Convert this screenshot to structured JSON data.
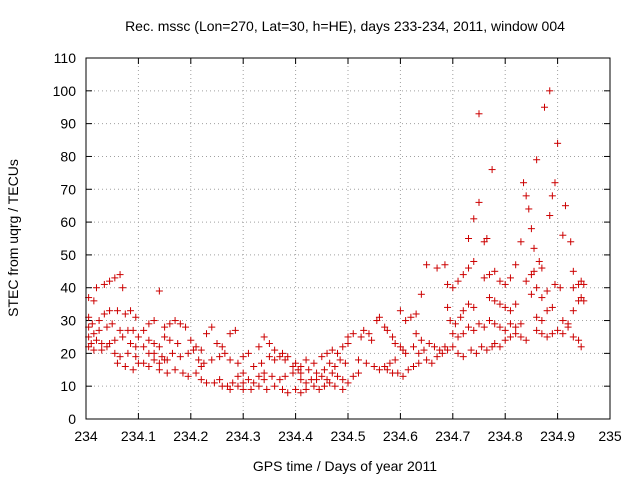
{
  "chart_data": {
    "type": "scatter",
    "title": "Rec. mssc (Lon=270, Lat=30, h=HE), days 233-234, 2011, window 004",
    "xlabel": "GPS time / Days of year 2011",
    "ylabel": "STEC from uqrg / TECUs",
    "xlim": [
      234,
      235
    ],
    "ylim": [
      0,
      110
    ],
    "grid": true,
    "marker": "plus",
    "color": "#cc0000",
    "x_ticks": [
      "234",
      "234.1",
      "234.2",
      "234.3",
      "234.4",
      "234.5",
      "234.6",
      "234.7",
      "234.8",
      "234.9",
      "235"
    ],
    "y_ticks": [
      "0",
      "10",
      "20",
      "30",
      "40",
      "50",
      "60",
      "70",
      "80",
      "90",
      "100",
      "110"
    ],
    "points": [
      [
        234.005,
        37
      ],
      [
        234.015,
        36
      ],
      [
        234.02,
        40
      ],
      [
        234.035,
        41
      ],
      [
        234.045,
        42
      ],
      [
        234.055,
        43
      ],
      [
        234.065,
        44
      ],
      [
        234.07,
        40
      ],
      [
        234.005,
        31
      ],
      [
        234.012,
        29
      ],
      [
        234.025,
        30
      ],
      [
        234.035,
        32
      ],
      [
        234.045,
        33
      ],
      [
        234.06,
        33
      ],
      [
        234.075,
        32
      ],
      [
        234.085,
        33
      ],
      [
        234.095,
        31
      ],
      [
        234.005,
        28
      ],
      [
        234.015,
        26
      ],
      [
        234.025,
        27
      ],
      [
        234.04,
        28
      ],
      [
        234.05,
        29
      ],
      [
        234.065,
        27
      ],
      [
        234.08,
        27
      ],
      [
        234.09,
        27
      ],
      [
        234.1,
        25
      ],
      [
        234.005,
        25
      ],
      [
        234.01,
        23
      ],
      [
        234.02,
        24
      ],
      [
        234.03,
        23
      ],
      [
        234.045,
        23
      ],
      [
        234.055,
        24
      ],
      [
        234.07,
        25
      ],
      [
        234.085,
        23
      ],
      [
        234.095,
        22
      ],
      [
        234.005,
        22
      ],
      [
        234.015,
        21
      ],
      [
        234.03,
        21
      ],
      [
        234.04,
        22
      ],
      [
        234.055,
        20
      ],
      [
        234.065,
        19
      ],
      [
        234.08,
        20
      ],
      [
        234.095,
        19
      ],
      [
        234.1,
        17
      ],
      [
        234.06,
        17
      ],
      [
        234.075,
        16
      ],
      [
        234.09,
        15
      ],
      [
        234.11,
        17
      ],
      [
        234.12,
        16
      ],
      [
        234.13,
        18
      ],
      [
        234.14,
        17
      ],
      [
        234.15,
        18
      ],
      [
        234.11,
        22
      ],
      [
        234.12,
        24
      ],
      [
        234.13,
        23
      ],
      [
        234.14,
        22
      ],
      [
        234.15,
        25
      ],
      [
        234.16,
        24
      ],
      [
        234.175,
        23
      ],
      [
        234.11,
        27
      ],
      [
        234.12,
        29
      ],
      [
        234.13,
        30
      ],
      [
        234.14,
        39
      ],
      [
        234.15,
        28
      ],
      [
        234.16,
        29
      ],
      [
        234.17,
        30
      ],
      [
        234.18,
        29
      ],
      [
        234.19,
        28
      ],
      [
        234.12,
        20
      ],
      [
        234.13,
        20
      ],
      [
        234.145,
        19
      ],
      [
        234.155,
        18
      ],
      [
        234.165,
        20
      ],
      [
        234.18,
        19
      ],
      [
        234.195,
        20
      ],
      [
        234.205,
        21
      ],
      [
        234.14,
        15
      ],
      [
        234.155,
        14
      ],
      [
        234.17,
        15
      ],
      [
        234.185,
        14
      ],
      [
        234.195,
        13
      ],
      [
        234.21,
        14
      ],
      [
        234.22,
        16
      ],
      [
        234.2,
        24
      ],
      [
        234.21,
        22
      ],
      [
        234.22,
        21
      ],
      [
        234.23,
        26
      ],
      [
        234.24,
        28
      ],
      [
        234.25,
        23
      ],
      [
        234.26,
        22
      ],
      [
        234.275,
        26
      ],
      [
        234.285,
        27
      ],
      [
        234.215,
        18
      ],
      [
        234.225,
        17
      ],
      [
        234.24,
        18
      ],
      [
        234.255,
        19
      ],
      [
        234.265,
        20
      ],
      [
        234.275,
        18
      ],
      [
        234.29,
        17
      ],
      [
        234.3,
        19
      ],
      [
        234.31,
        20
      ],
      [
        234.22,
        12
      ],
      [
        234.23,
        11
      ],
      [
        234.245,
        11
      ],
      [
        234.255,
        12
      ],
      [
        234.27,
        10
      ],
      [
        234.28,
        11
      ],
      [
        234.29,
        13
      ],
      [
        234.3,
        14
      ],
      [
        234.26,
        10
      ],
      [
        234.275,
        9
      ],
      [
        234.29,
        10
      ],
      [
        234.3,
        11
      ],
      [
        234.31,
        12
      ],
      [
        234.32,
        11
      ],
      [
        234.33,
        13
      ],
      [
        234.34,
        12
      ],
      [
        234.3,
        9
      ],
      [
        234.315,
        9
      ],
      [
        234.33,
        10
      ],
      [
        234.345,
        9
      ],
      [
        234.36,
        10
      ],
      [
        234.375,
        9
      ],
      [
        234.385,
        8
      ],
      [
        234.4,
        9
      ],
      [
        234.32,
        16
      ],
      [
        234.335,
        17
      ],
      [
        234.35,
        19
      ],
      [
        234.36,
        18
      ],
      [
        234.375,
        20
      ],
      [
        234.385,
        19
      ],
      [
        234.4,
        17
      ],
      [
        234.41,
        16
      ],
      [
        234.33,
        22
      ],
      [
        234.34,
        25
      ],
      [
        234.35,
        23
      ],
      [
        234.36,
        21
      ],
      [
        234.37,
        19
      ],
      [
        234.38,
        18
      ],
      [
        234.395,
        16
      ],
      [
        234.405,
        15
      ],
      [
        234.34,
        14
      ],
      [
        234.355,
        13
      ],
      [
        234.37,
        12
      ],
      [
        234.38,
        13
      ],
      [
        234.395,
        14
      ],
      [
        234.41,
        12
      ],
      [
        234.42,
        11
      ],
      [
        234.43,
        12
      ],
      [
        234.41,
        8
      ],
      [
        234.42,
        9
      ],
      [
        234.435,
        10
      ],
      [
        234.445,
        9
      ],
      [
        234.455,
        10
      ],
      [
        234.465,
        11
      ],
      [
        234.475,
        10
      ],
      [
        234.49,
        9
      ],
      [
        234.41,
        14
      ],
      [
        234.425,
        15
      ],
      [
        234.44,
        14
      ],
      [
        234.455,
        15
      ],
      [
        234.465,
        17
      ],
      [
        234.475,
        16
      ],
      [
        234.485,
        18
      ],
      [
        234.495,
        17
      ],
      [
        234.42,
        18
      ],
      [
        234.435,
        17
      ],
      [
        234.45,
        19
      ],
      [
        234.46,
        20
      ],
      [
        234.47,
        21
      ],
      [
        234.48,
        20
      ],
      [
        234.49,
        22
      ],
      [
        234.5,
        23
      ],
      [
        234.44,
        12
      ],
      [
        234.45,
        13
      ],
      [
        234.46,
        12
      ],
      [
        234.47,
        14
      ],
      [
        234.48,
        13
      ],
      [
        234.49,
        12
      ],
      [
        234.5,
        11
      ],
      [
        234.51,
        13
      ],
      [
        234.52,
        14
      ],
      [
        234.5,
        25
      ],
      [
        234.51,
        26
      ],
      [
        234.525,
        25
      ],
      [
        234.53,
        27
      ],
      [
        234.54,
        26
      ],
      [
        234.545,
        24
      ],
      [
        234.555,
        30
      ],
      [
        234.56,
        31
      ],
      [
        234.52,
        18
      ],
      [
        234.535,
        17
      ],
      [
        234.55,
        16
      ],
      [
        234.56,
        15
      ],
      [
        234.57,
        16
      ],
      [
        234.58,
        17
      ],
      [
        234.59,
        18
      ],
      [
        234.57,
        28
      ],
      [
        234.575,
        27
      ],
      [
        234.585,
        25
      ],
      [
        234.59,
        23
      ],
      [
        234.6,
        22
      ],
      [
        234.605,
        21
      ],
      [
        234.61,
        20
      ],
      [
        234.575,
        15
      ],
      [
        234.585,
        14
      ],
      [
        234.595,
        14
      ],
      [
        234.605,
        13
      ],
      [
        234.615,
        15
      ],
      [
        234.625,
        16
      ],
      [
        234.635,
        17
      ],
      [
        234.6,
        33
      ],
      [
        234.61,
        30
      ],
      [
        234.62,
        31
      ],
      [
        234.63,
        32
      ],
      [
        234.64,
        38
      ],
      [
        234.65,
        47
      ],
      [
        234.63,
        26
      ],
      [
        234.64,
        24
      ],
      [
        234.625,
        22
      ],
      [
        234.635,
        20
      ],
      [
        234.645,
        21
      ],
      [
        234.655,
        23
      ],
      [
        234.665,
        22
      ],
      [
        234.675,
        21
      ],
      [
        234.685,
        22
      ],
      [
        234.65,
        18
      ],
      [
        234.66,
        17
      ],
      [
        234.67,
        19
      ],
      [
        234.68,
        20
      ],
      [
        234.69,
        21
      ],
      [
        234.7,
        22
      ],
      [
        234.67,
        46
      ],
      [
        234.685,
        47
      ],
      [
        234.69,
        41
      ],
      [
        234.7,
        40
      ],
      [
        234.71,
        42
      ],
      [
        234.72,
        44
      ],
      [
        234.73,
        46
      ],
      [
        234.74,
        48
      ],
      [
        234.69,
        34
      ],
      [
        234.695,
        30
      ],
      [
        234.705,
        29
      ],
      [
        234.715,
        31
      ],
      [
        234.72,
        33
      ],
      [
        234.73,
        35
      ],
      [
        234.74,
        34
      ],
      [
        234.7,
        26
      ],
      [
        234.71,
        25
      ],
      [
        234.72,
        26
      ],
      [
        234.73,
        28
      ],
      [
        234.74,
        27
      ],
      [
        234.75,
        29
      ],
      [
        234.76,
        28
      ],
      [
        234.71,
        20
      ],
      [
        234.72,
        19
      ],
      [
        234.735,
        21
      ],
      [
        234.745,
        20
      ],
      [
        234.755,
        22
      ],
      [
        234.765,
        21
      ],
      [
        234.775,
        22
      ],
      [
        234.73,
        55
      ],
      [
        234.74,
        61
      ],
      [
        234.75,
        66
      ],
      [
        234.75,
        93
      ],
      [
        234.76,
        54
      ],
      [
        234.765,
        55
      ],
      [
        234.775,
        76
      ],
      [
        234.76,
        43
      ],
      [
        234.77,
        44
      ],
      [
        234.78,
        45
      ],
      [
        234.79,
        42
      ],
      [
        234.8,
        41
      ],
      [
        234.81,
        43
      ],
      [
        234.77,
        37
      ],
      [
        234.78,
        36
      ],
      [
        234.79,
        35
      ],
      [
        234.8,
        34
      ],
      [
        234.81,
        33
      ],
      [
        234.82,
        35
      ],
      [
        234.77,
        30
      ],
      [
        234.78,
        29
      ],
      [
        234.79,
        28
      ],
      [
        234.8,
        27
      ],
      [
        234.81,
        29
      ],
      [
        234.82,
        28
      ],
      [
        234.83,
        29
      ],
      [
        234.78,
        23
      ],
      [
        234.79,
        22
      ],
      [
        234.8,
        24
      ],
      [
        234.81,
        25
      ],
      [
        234.82,
        26
      ],
      [
        234.83,
        25
      ],
      [
        234.84,
        24
      ],
      [
        234.82,
        47
      ],
      [
        234.83,
        54
      ],
      [
        234.835,
        72
      ],
      [
        234.84,
        68
      ],
      [
        234.845,
        64
      ],
      [
        234.85,
        58
      ],
      [
        234.855,
        52
      ],
      [
        234.86,
        79
      ],
      [
        234.84,
        42
      ],
      [
        234.85,
        44
      ],
      [
        234.855,
        45
      ],
      [
        234.865,
        48
      ],
      [
        234.87,
        46
      ],
      [
        234.875,
        95
      ],
      [
        234.885,
        100
      ],
      [
        234.85,
        38
      ],
      [
        234.86,
        40
      ],
      [
        234.87,
        37
      ],
      [
        234.88,
        39
      ],
      [
        234.885,
        62
      ],
      [
        234.89,
        68
      ],
      [
        234.86,
        31
      ],
      [
        234.87,
        30
      ],
      [
        234.88,
        33
      ],
      [
        234.89,
        34
      ],
      [
        234.895,
        72
      ],
      [
        234.9,
        84
      ],
      [
        234.86,
        27
      ],
      [
        234.87,
        26
      ],
      [
        234.88,
        25
      ],
      [
        234.89,
        26
      ],
      [
        234.9,
        27
      ],
      [
        234.91,
        26
      ],
      [
        234.92,
        28
      ],
      [
        234.895,
        41
      ],
      [
        234.905,
        40
      ],
      [
        234.91,
        56
      ],
      [
        234.915,
        65
      ],
      [
        234.925,
        54
      ],
      [
        234.93,
        45
      ],
      [
        234.91,
        30
      ],
      [
        234.92,
        29
      ],
      [
        234.93,
        33
      ],
      [
        234.94,
        36
      ],
      [
        234.945,
        37
      ],
      [
        234.95,
        36
      ],
      [
        234.93,
        40
      ],
      [
        234.94,
        41
      ],
      [
        234.945,
        42
      ],
      [
        234.95,
        41
      ],
      [
        234.93,
        25
      ],
      [
        234.94,
        24
      ],
      [
        234.945,
        22
      ]
    ]
  }
}
